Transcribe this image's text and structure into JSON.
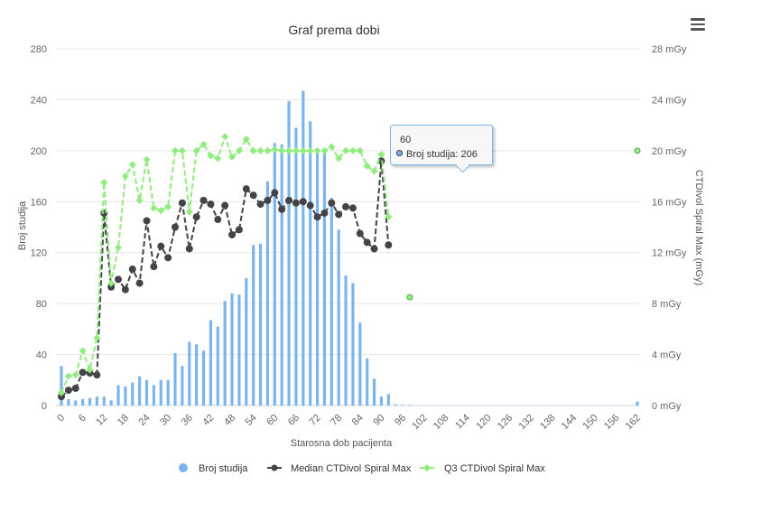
{
  "chart_data": {
    "type": "bar+line",
    "title": "Graf prema dobi",
    "xlabel": "Starosna dob pacijenta",
    "ylabel_left": "Broj studija",
    "ylabel_right": "CTDIvol Spiral Max (mGy)",
    "xlim": [
      0,
      162
    ],
    "x_ticks": [
      "0",
      "6",
      "12",
      "18",
      "24",
      "30",
      "36",
      "42",
      "48",
      "54",
      "60",
      "66",
      "72",
      "78",
      "84",
      "90",
      "96",
      "102",
      "108",
      "114",
      "120",
      "126",
      "132",
      "138",
      "144",
      "150",
      "156",
      "162"
    ],
    "ylim_left": [
      0,
      280
    ],
    "y_ticks_left": [
      "0",
      "40",
      "80",
      "120",
      "160",
      "200",
      "240",
      "280"
    ],
    "ylim_right": [
      0,
      28
    ],
    "y_ticks_right": [
      "0 mGy",
      "4 mGy",
      "8 mGy",
      "12 mGy",
      "16 mGy",
      "20 mGy",
      "24 mGy",
      "28 mGy"
    ],
    "grid": true,
    "legend_position": "bottom-center",
    "series": [
      {
        "name": "Broj studija",
        "type": "bar",
        "axis": "left",
        "color": "#7cb5ec",
        "x": [
          0,
          2,
          4,
          6,
          8,
          10,
          12,
          14,
          16,
          18,
          20,
          22,
          24,
          26,
          28,
          30,
          32,
          34,
          36,
          38,
          40,
          42,
          44,
          46,
          48,
          50,
          52,
          54,
          56,
          58,
          60,
          62,
          64,
          66,
          68,
          70,
          72,
          74,
          76,
          78,
          80,
          82,
          84,
          86,
          88,
          90,
          92,
          94,
          96,
          98,
          162
        ],
        "values": [
          31,
          5,
          4,
          5,
          6,
          7,
          7,
          4,
          16,
          15,
          18,
          23,
          20,
          16,
          20,
          20,
          41,
          31,
          50,
          48,
          43,
          67,
          62,
          82,
          88,
          87,
          100,
          126,
          127,
          176,
          206,
          205,
          239,
          218,
          247,
          223,
          200,
          200,
          163,
          138,
          102,
          96,
          65,
          37,
          21,
          7,
          9,
          1,
          0.5,
          0.5,
          3
        ]
      },
      {
        "name": "Median CTDivol Spiral Max",
        "type": "line",
        "axis": "right",
        "color": "#434348",
        "x": [
          0,
          2,
          4,
          6,
          8,
          10,
          12,
          14,
          16,
          18,
          20,
          22,
          24,
          26,
          28,
          30,
          32,
          34,
          36,
          38,
          40,
          42,
          44,
          46,
          48,
          50,
          52,
          54,
          56,
          58,
          60,
          62,
          64,
          66,
          68,
          70,
          72,
          74,
          76,
          78,
          80,
          82,
          84,
          86,
          88,
          90,
          92
        ],
        "values": [
          0.7,
          1.2,
          1.35,
          2.6,
          2.55,
          2.4,
          15.1,
          9.3,
          9.9,
          9.1,
          10.7,
          9.6,
          14.5,
          10.9,
          12.5,
          11.6,
          14.0,
          15.9,
          12.3,
          14.8,
          16.1,
          15.8,
          14.6,
          15.7,
          13.4,
          13.8,
          17.0,
          16.5,
          15.8,
          16.1,
          16.7,
          15.4,
          16.1,
          15.9,
          16.0,
          15.7,
          14.8,
          15.1,
          15.9,
          15.0,
          15.6,
          15.5,
          13.5,
          12.8,
          12.3,
          19.2,
          12.6
        ]
      },
      {
        "name": "Q3 CTDivol Spiral Max",
        "type": "line",
        "axis": "right",
        "color": "#90ed7d",
        "x": [
          0,
          2,
          4,
          6,
          8,
          10,
          12,
          14,
          16,
          18,
          20,
          22,
          24,
          26,
          28,
          30,
          32,
          34,
          36,
          38,
          40,
          42,
          44,
          46,
          48,
          50,
          52,
          54,
          56,
          58,
          60,
          62,
          64,
          66,
          68,
          70,
          72,
          74,
          76,
          78,
          80,
          82,
          84,
          86,
          88,
          90,
          92,
          98,
          162
        ],
        "values": [
          1.0,
          2.3,
          2.4,
          4.3,
          2.8,
          5.3,
          17.5,
          9.6,
          12.4,
          18.0,
          18.9,
          16.1,
          19.3,
          15.5,
          15.3,
          15.6,
          20.0,
          20.0,
          15.2,
          20.0,
          20.5,
          19.6,
          19.4,
          21.1,
          19.5,
          20.0,
          20.9,
          20.0,
          20.0,
          20.0,
          20.1,
          20.0,
          20.0,
          20.0,
          20.0,
          20.0,
          20.0,
          20.0,
          20.3,
          19.4,
          20.0,
          20.0,
          20.0,
          18.8,
          18.4,
          19.7,
          14.8,
          8.5,
          20.0
        ],
        "breaks_after_x": [
          92,
          98
        ]
      }
    ]
  },
  "tooltip": {
    "header": "60",
    "series_label": "Broj studija: 206"
  },
  "menu": {
    "icon": "hamburger-menu-icon"
  }
}
